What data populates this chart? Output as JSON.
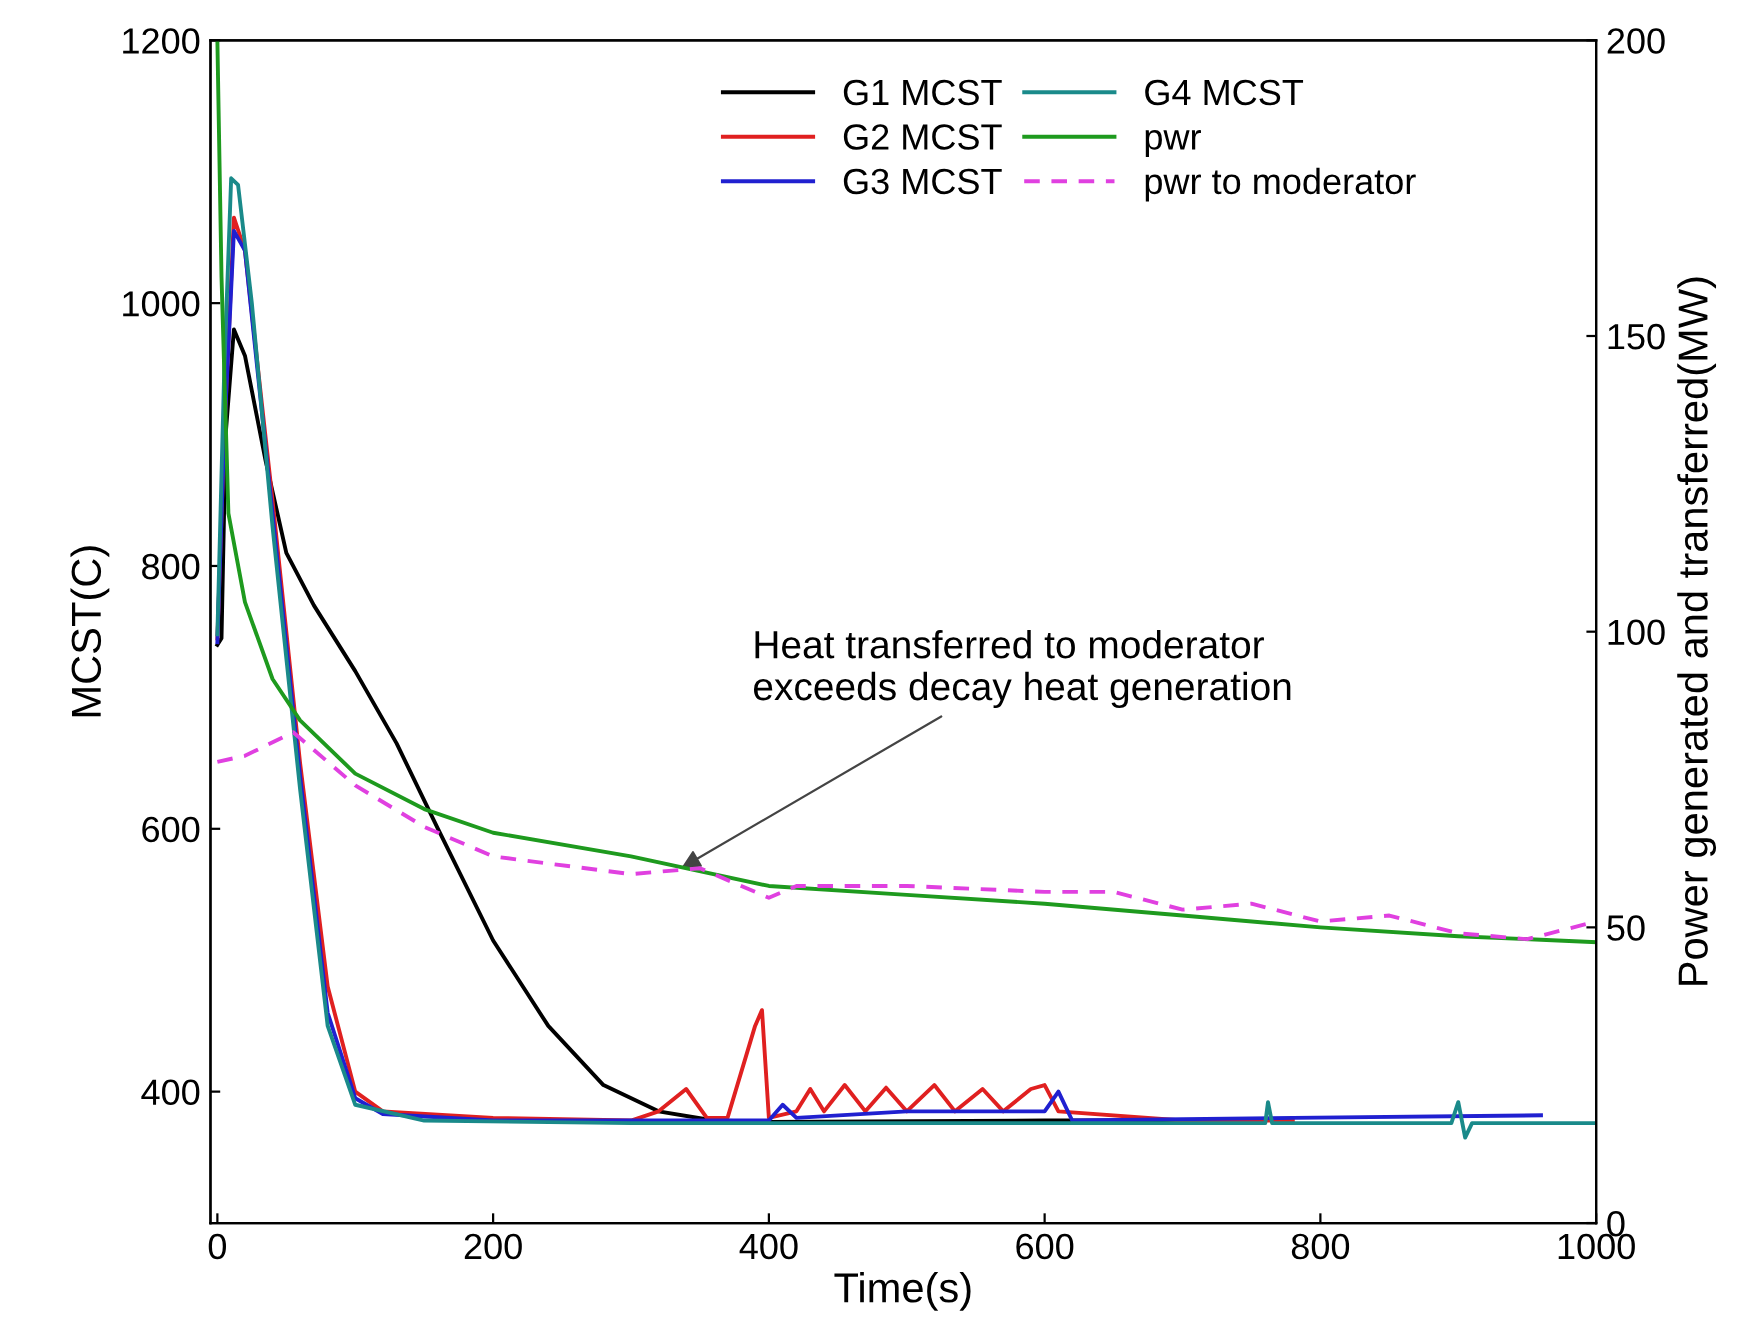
{
  "chart_data": {
    "type": "line",
    "xlabel": "Time(s)",
    "ylabel": "MCST(C)",
    "y2label": "Power generated and transferred(MW)",
    "xlim": [
      -5,
      1000
    ],
    "xticks": [
      0,
      200,
      400,
      600,
      800,
      1000
    ],
    "ylim": [
      300,
      1200
    ],
    "yticks": [
      400,
      600,
      800,
      1000,
      1200
    ],
    "y2lim": [
      0,
      200
    ],
    "y2ticks": [
      0,
      50,
      100,
      150,
      200
    ],
    "legend": "top",
    "grid": false,
    "marker": "none",
    "annotations": [
      {
        "text": "Heat transferred to moderator\nexceeds decay heat generation",
        "x": 333,
        "y": 568
      }
    ],
    "series": [
      {
        "name": "G1 MCST",
        "color": "#000000",
        "x": [
          0,
          3,
          6,
          12,
          20,
          35,
          50,
          70,
          100,
          130,
          160,
          200,
          240,
          280,
          320,
          360,
          400,
          600,
          700
        ],
        "values": [
          740,
          745,
          900,
          980,
          960,
          880,
          810,
          770,
          720,
          665,
          600,
          515,
          450,
          405,
          385,
          378,
          377,
          378,
          378
        ]
      },
      {
        "name": "G2 MCST",
        "color": "#e02020",
        "x": [
          0,
          5,
          12,
          20,
          40,
          60,
          80,
          100,
          120,
          200,
          300,
          320,
          340,
          355,
          370,
          390,
          395,
          400,
          420,
          430,
          440,
          455,
          470,
          485,
          500,
          520,
          535,
          555,
          570,
          590,
          600,
          610,
          700,
          780
        ],
        "values": [
          745,
          900,
          1065,
          1040,
          850,
          650,
          480,
          400,
          385,
          380,
          378,
          385,
          402,
          380,
          380,
          450,
          462,
          380,
          385,
          402,
          385,
          405,
          385,
          403,
          385,
          405,
          385,
          402,
          385,
          402,
          405,
          385,
          378,
          378
        ]
      },
      {
        "name": "G3 MCST",
        "color": "#2020d0",
        "x": [
          0,
          5,
          12,
          20,
          40,
          60,
          80,
          100,
          120,
          200,
          400,
          410,
          420,
          500,
          600,
          610,
          620,
          780,
          960
        ],
        "values": [
          742,
          900,
          1055,
          1040,
          840,
          640,
          460,
          395,
          383,
          378,
          378,
          390,
          380,
          385,
          385,
          400,
          378,
          380,
          382
        ]
      },
      {
        "name": "G4 MCST",
        "color": "#1a8a8a",
        "x": [
          0,
          5,
          10,
          15,
          25,
          40,
          60,
          80,
          100,
          150,
          300,
          760,
          762,
          765,
          895,
          900,
          905,
          910,
          1000
        ],
        "values": [
          748,
          950,
          1095,
          1090,
          1000,
          830,
          630,
          450,
          390,
          378,
          376,
          376,
          392,
          376,
          376,
          392,
          365,
          376,
          376
        ]
      },
      {
        "name": "pwr",
        "color": "#1e9a1e",
        "axis": "y2",
        "x": [
          0,
          3,
          8,
          20,
          40,
          60,
          100,
          150,
          200,
          300,
          400,
          500,
          600,
          700,
          800,
          900,
          1000
        ],
        "values": [
          200,
          160,
          120,
          105,
          92,
          85,
          76,
          70,
          66,
          62,
          57,
          55.5,
          54,
          52,
          50,
          48.5,
          47.5
        ]
      },
      {
        "name": "pwr to moderator",
        "color": "#e040e0",
        "axis": "y2",
        "line_style": "dashed",
        "x": [
          0,
          20,
          55,
          100,
          150,
          200,
          300,
          350,
          390,
          400,
          420,
          500,
          600,
          650,
          700,
          750,
          800,
          850,
          900,
          950,
          1000
        ],
        "values": [
          78,
          79,
          83,
          74,
          67,
          62,
          59,
          60,
          56,
          55,
          57,
          57,
          56,
          56,
          53,
          54,
          51,
          52,
          49,
          48,
          51
        ]
      }
    ]
  }
}
